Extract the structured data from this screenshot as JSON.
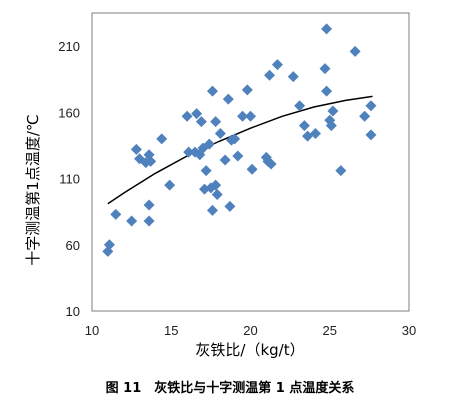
{
  "chart_data": {
    "type": "scatter",
    "title": "",
    "xlabel": "灰铁比/（kg/t）",
    "ylabel": "十字测温第1点温度/℃",
    "xlim": [
      10,
      30
    ],
    "ylim": [
      10,
      235
    ],
    "x_ticks": [
      "10",
      "15",
      "20",
      "25",
      "30"
    ],
    "y_ticks": [
      "10",
      "60",
      "110",
      "160",
      "210"
    ],
    "grid": false,
    "legend": "none",
    "marker_color": "#4F81BD",
    "marker_shape": "diamond",
    "points": [
      {
        "x": 11.0,
        "y": 55
      },
      {
        "x": 11.1,
        "y": 60
      },
      {
        "x": 11.5,
        "y": 83
      },
      {
        "x": 12.5,
        "y": 78
      },
      {
        "x": 12.8,
        "y": 132
      },
      {
        "x": 13.0,
        "y": 125
      },
      {
        "x": 13.4,
        "y": 122
      },
      {
        "x": 13.6,
        "y": 128
      },
      {
        "x": 13.6,
        "y": 78
      },
      {
        "x": 13.6,
        "y": 90
      },
      {
        "x": 13.7,
        "y": 123
      },
      {
        "x": 14.4,
        "y": 140
      },
      {
        "x": 14.9,
        "y": 105
      },
      {
        "x": 16.0,
        "y": 157
      },
      {
        "x": 16.1,
        "y": 130
      },
      {
        "x": 16.5,
        "y": 130
      },
      {
        "x": 16.6,
        "y": 159
      },
      {
        "x": 16.8,
        "y": 128
      },
      {
        "x": 16.9,
        "y": 153
      },
      {
        "x": 17.0,
        "y": 133
      },
      {
        "x": 17.1,
        "y": 102
      },
      {
        "x": 17.2,
        "y": 116
      },
      {
        "x": 17.4,
        "y": 136
      },
      {
        "x": 17.5,
        "y": 103
      },
      {
        "x": 17.6,
        "y": 86
      },
      {
        "x": 17.6,
        "y": 176
      },
      {
        "x": 17.8,
        "y": 105
      },
      {
        "x": 17.8,
        "y": 153
      },
      {
        "x": 17.9,
        "y": 98
      },
      {
        "x": 18.1,
        "y": 144
      },
      {
        "x": 18.4,
        "y": 124
      },
      {
        "x": 18.6,
        "y": 170
      },
      {
        "x": 18.7,
        "y": 89
      },
      {
        "x": 18.8,
        "y": 139
      },
      {
        "x": 19.0,
        "y": 140
      },
      {
        "x": 19.2,
        "y": 127
      },
      {
        "x": 19.5,
        "y": 157
      },
      {
        "x": 19.8,
        "y": 177
      },
      {
        "x": 20.0,
        "y": 157
      },
      {
        "x": 20.1,
        "y": 117
      },
      {
        "x": 21.0,
        "y": 126
      },
      {
        "x": 21.1,
        "y": 123
      },
      {
        "x": 21.2,
        "y": 188
      },
      {
        "x": 21.3,
        "y": 121
      },
      {
        "x": 21.7,
        "y": 196
      },
      {
        "x": 22.7,
        "y": 187
      },
      {
        "x": 23.1,
        "y": 165
      },
      {
        "x": 23.4,
        "y": 150
      },
      {
        "x": 23.6,
        "y": 142
      },
      {
        "x": 24.1,
        "y": 144
      },
      {
        "x": 24.7,
        "y": 193
      },
      {
        "x": 24.8,
        "y": 223
      },
      {
        "x": 24.8,
        "y": 176
      },
      {
        "x": 25.0,
        "y": 154
      },
      {
        "x": 25.1,
        "y": 150
      },
      {
        "x": 25.2,
        "y": 161
      },
      {
        "x": 25.7,
        "y": 116
      },
      {
        "x": 26.6,
        "y": 206
      },
      {
        "x": 27.2,
        "y": 157
      },
      {
        "x": 27.6,
        "y": 143
      },
      {
        "x": 27.6,
        "y": 165
      }
    ],
    "trendline": {
      "type": "logarithmic",
      "color": "#000000",
      "x": [
        11.0,
        12.0,
        14.0,
        16.0,
        18.0,
        20.0,
        22.0,
        24.0,
        26.0,
        27.7
      ],
      "y": [
        91,
        99,
        114,
        127,
        138,
        148,
        157,
        164,
        169,
        172
      ]
    }
  },
  "caption": "图 11　灰铁比与十字测温第 1 点温度关系"
}
